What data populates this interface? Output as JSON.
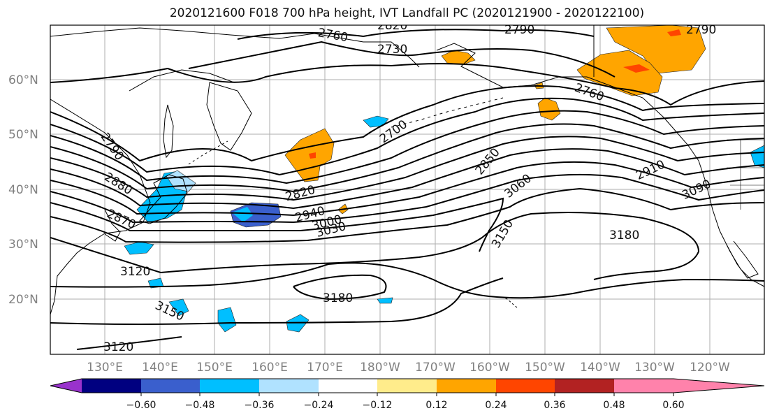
{
  "title": "2020121600 F018 700 hPa height, IVT Landfall PC (2020121900 - 2020122100)",
  "map": {
    "lon_labels": [
      "130°E",
      "140°E",
      "150°E",
      "160°E",
      "170°E",
      "180°W",
      "170°W",
      "160°W",
      "150°W",
      "140°W",
      "130°W",
      "120°W"
    ],
    "lat_labels": [
      "60°N",
      "50°N",
      "40°N",
      "30°N",
      "20°N"
    ],
    "contour_labels": [
      "2820",
      "2760",
      "2730",
      "2790",
      "2760",
      "2790",
      "2790",
      "2700",
      "2880",
      "2870",
      "2820",
      "2940",
      "3000",
      "3030",
      "3120",
      "2850",
      "3060",
      "2910",
      "3090",
      "3150",
      "3180",
      "3180",
      "3150",
      "3120"
    ]
  },
  "colorbar": {
    "ticks": [
      "−0.60",
      "−0.48",
      "−0.36",
      "−0.24",
      "−0.12",
      "0.12",
      "0.24",
      "0.36",
      "0.48",
      "0.60"
    ],
    "colors": [
      "#9932cc",
      "#000080",
      "#3a5fcd",
      "#00bfff",
      "#b0e2ff",
      "#ffffff",
      "#ffec8b",
      "#ffa500",
      "#ff4500",
      "#b22222",
      "#ff82ab"
    ]
  }
}
